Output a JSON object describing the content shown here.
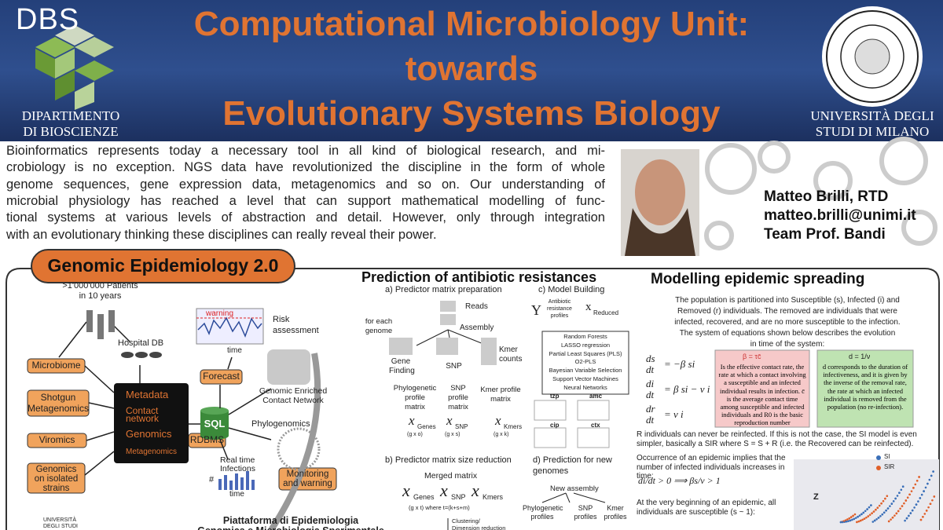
{
  "header": {
    "logo_left": "DBS",
    "dept": [
      "DIPARTIMENTO",
      "DI BIOSCIENZE"
    ],
    "title": [
      "Computational Microbiology Unit:",
      "towards",
      "Evolutionary Systems Biology"
    ],
    "univ": [
      "UNIVERSITÀ DEGLI",
      "STUDI DI MILANO"
    ]
  },
  "intro": [
    "Bioinformatics represents today a necessary tool in all kind of biological research, and mi-",
    "crobiology is no exception. NGS data have revolutionized the discipline in the form of whole",
    "genome sequences, gene expression data, metagenomics and so on. Our understanding of",
    "microbial physiology has reached a level that can support mathematical modelling of func-",
    "tional systems at various levels of abstraction and detail. However, only through integration",
    "with an evolutionary thinking these disciplines can really reveal their power."
  ],
  "author": [
    "Matteo Brilli, RTD",
    "matteo.brilli@unimi.it",
    "Team Prof. Bandi"
  ],
  "epi": {
    "title": "Genomic Epidemiology 2.0",
    "patients": [
      ">1'000'000 Patients",
      "in 10 years"
    ],
    "hospital_db": "Hospital DB",
    "microbiome": "Microbiome",
    "shotgun": [
      "Shotgun",
      "Metagenomics"
    ],
    "viromics": "Viromics",
    "isolated": [
      "Genomics",
      "on isolated",
      "strains"
    ],
    "db_items": {
      "metadata": "Metadata",
      "contact": [
        "Contact",
        "network"
      ],
      "genomics": "Genomics",
      "metagenomics": "Metagenomics"
    },
    "sql": "SQL",
    "rdbms": "RDBMS",
    "forecast": "Forecast",
    "warning": "warning",
    "time": "time",
    "risk": [
      "Risk",
      "assessment"
    ],
    "network": [
      "Genomic Enriched",
      "Contact Network"
    ],
    "phylogenomics": "Phylogenomics",
    "realtime": [
      "Real time",
      "Infections"
    ],
    "hash": "#",
    "monitoring": [
      "Monitoring",
      "and warning"
    ],
    "platform": [
      "Piattaforma di Epidemiologia",
      "Genomica e Microbiologia Sperimentale"
    ],
    "logo_univ": [
      "UNIVERSITÀ",
      "DEGLI STUDI"
    ]
  },
  "amr": {
    "title": "Prediction of antibiotic resistances",
    "a": "a) Predictor matrix preparation",
    "reads": "Reads",
    "assembly": "Assembly",
    "for_each": [
      "for each",
      "genome"
    ],
    "gene_finding": [
      "Gene",
      "Finding"
    ],
    "snp": "SNP",
    "kmer": [
      "Kmer",
      "counts"
    ],
    "phylo_matrix": [
      "Phylogenetic",
      "profile",
      "matrix"
    ],
    "snp_matrix": [
      "SNP",
      "profile",
      "matrix"
    ],
    "kmer_matrix": [
      "Kmer profile",
      "matrix"
    ],
    "x": "x",
    "sub": [
      "Genes",
      "SNP",
      "Kmers"
    ],
    "dims": [
      "(g x o)",
      "(g x s)",
      "(g x k)"
    ],
    "c": "c) Model Building",
    "y": "Y",
    "profiles": [
      "Antibiotic",
      "resistance",
      "profiles"
    ],
    "reduced": "Reduced",
    "methods": [
      "Random Forests",
      "LASSO regression",
      "Partial Least Squares (PLS)",
      "O2-PLS",
      "Bayesian Variable Selection",
      "Support Vector Machines",
      "Neural Networks"
    ],
    "plots": [
      "tzp",
      "amc",
      "cip",
      "ctx"
    ],
    "b": "b) Predictor matrix size reduction",
    "merged": "Merged matrix",
    "merged_dims": "(g x t) where t=(k+s+m)",
    "clustering": [
      "Clustering/",
      "Dimension reduction"
    ],
    "d": [
      "d) Prediction for new",
      "genomes"
    ],
    "new_assembly": "New assembly",
    "new_profiles": [
      [
        "Phylogenetic",
        "profiles"
      ],
      [
        "SNP",
        "profiles"
      ],
      [
        "Kmer",
        "profiles"
      ]
    ]
  },
  "sir": {
    "title": "Modelling epidemic spreading",
    "p1": [
      "The population is partitioned into Susceptible (s), Infected (i) and",
      "Removed (r) individuals. The removed are individuals that were",
      "infected, recovered, and are no more susceptible to the infection.",
      "The system of equations shown below describes the evolution",
      "in time of the system:"
    ],
    "eq_num": [
      "ds",
      "di",
      "dr"
    ],
    "eq_den": "dt",
    "eq_rhs": [
      "= −β si",
      "= β si − ν i",
      "= ν i"
    ],
    "beta_title": "β = τc̄",
    "beta_text": "Is the effective contact rate, the rate at which a contact involving a susceptible and an infected individual results in infection. c̄ is the average contact time among susceptible and infected individuals and R0 is the basic reproduction number",
    "d_title": "d = 1/ν",
    "d_text": "d corresponds to the duration of infectiveness, and it is given by the inverse of the removal rate, the rate at which an infected individual is removed from the population (no re-infection).",
    "p2": "R individuals can never be reinfected. If this is not the case, the SI model is even simpler, basically a SIR where S = S + R (i.e. the Recovered can be reinfected).",
    "p3": "Occurrence of an epidemic implies that the number of infected individuals increases in time:",
    "eq2": "di/dt > 0  ⟹  βs/ν > 1",
    "p4": "At the very beginning of an epidemic, all individuals are susceptible (s ~ 1):",
    "legend": [
      "SI",
      "SIR"
    ],
    "axis": "Z"
  }
}
